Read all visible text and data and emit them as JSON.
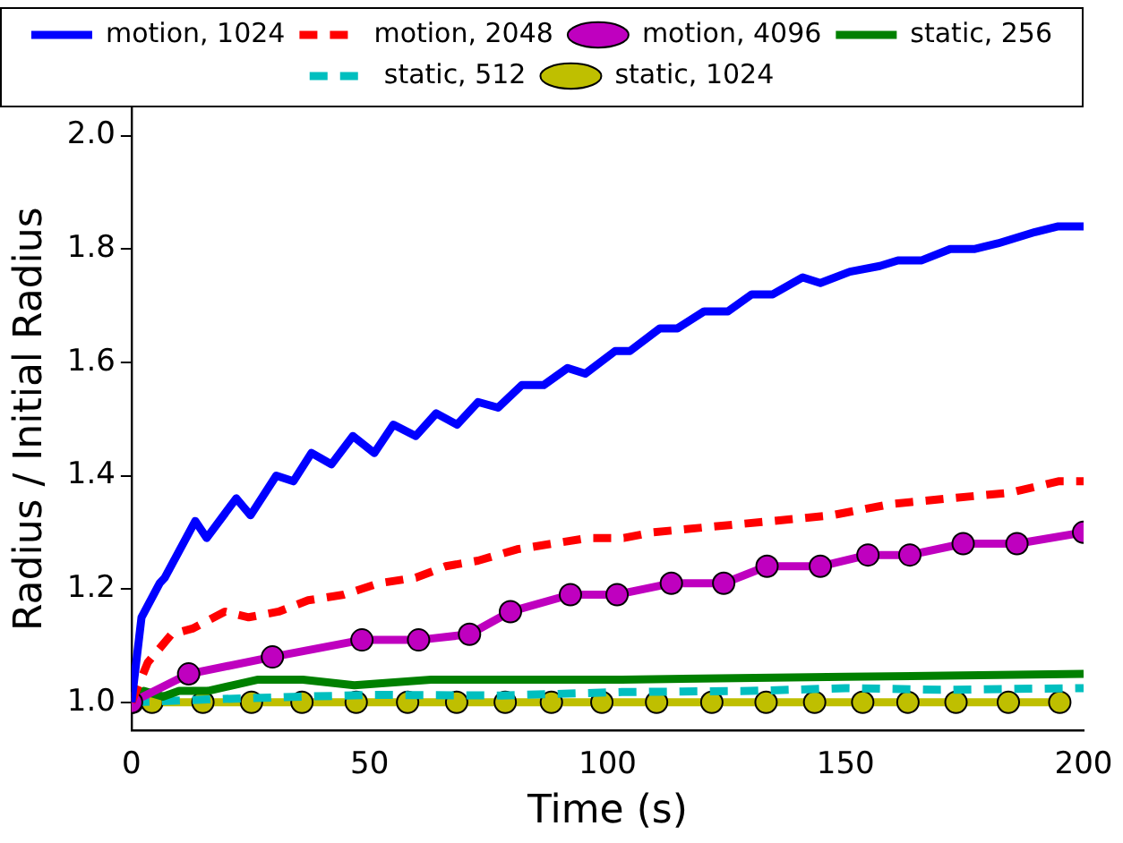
{
  "chart_data": {
    "type": "line",
    "xlabel": "Time (s)",
    "ylabel": "Radius / Initial Radius",
    "xlim": [
      0,
      200
    ],
    "ylim": [
      0.95,
      2.05
    ],
    "xticks": [
      0,
      50,
      100,
      150,
      200
    ],
    "yticks": [
      {
        "value": 1,
        "label": "1.0"
      },
      {
        "value": 1.2,
        "label": "1.2"
      },
      {
        "value": 1.4,
        "label": "1.4"
      },
      {
        "value": 1.6,
        "label": "1.6"
      },
      {
        "value": 1.8,
        "label": "1.8"
      },
      {
        "value": 2,
        "label": "2.0"
      }
    ],
    "grid": false,
    "legend": "top",
    "series": [
      {
        "name": "motion, 1024",
        "color": "#0000ff",
        "line_style": "solid",
        "marker": "none",
        "x": [
          0,
          2.1,
          5.9,
          7,
          13.4,
          15.8,
          22,
          25,
          30.4,
          34,
          37.8,
          42,
          46.5,
          51,
          55,
          59.7,
          64,
          68.4,
          72.8,
          77,
          82,
          86.6,
          91.6,
          95.3,
          101.6,
          104.7,
          111,
          114.7,
          120.3,
          125.3,
          130.3,
          134.7,
          141,
          144.7,
          150.9,
          157.2,
          161,
          166,
          172,
          177,
          182,
          189.8,
          194.7,
          200
        ],
        "values": [
          1.0,
          1.15,
          1.21,
          1.22,
          1.32,
          1.29,
          1.36,
          1.33,
          1.4,
          1.39,
          1.44,
          1.42,
          1.47,
          1.44,
          1.49,
          1.47,
          1.51,
          1.49,
          1.53,
          1.52,
          1.56,
          1.56,
          1.59,
          1.58,
          1.62,
          1.62,
          1.66,
          1.66,
          1.69,
          1.69,
          1.72,
          1.72,
          1.75,
          1.74,
          1.76,
          1.77,
          1.78,
          1.78,
          1.8,
          1.8,
          1.81,
          1.83,
          1.84,
          1.84
        ]
      },
      {
        "name": "motion, 2048",
        "color": "#ff0000",
        "line_style": "dashed",
        "marker": "none",
        "x": [
          0,
          3.4,
          8.4,
          12.8,
          19.6,
          24.6,
          30.9,
          37.1,
          44.6,
          52,
          59.7,
          66,
          72.8,
          81,
          88.4,
          96,
          103.4,
          109.6,
          122,
          134.7,
          147,
          159.7,
          172,
          184.6,
          194.7,
          200
        ],
        "values": [
          1.0,
          1.07,
          1.12,
          1.13,
          1.16,
          1.15,
          1.16,
          1.18,
          1.19,
          1.21,
          1.22,
          1.24,
          1.25,
          1.27,
          1.28,
          1.29,
          1.29,
          1.3,
          1.31,
          1.32,
          1.33,
          1.35,
          1.36,
          1.37,
          1.39,
          1.39
        ]
      },
      {
        "name": "motion, 4096",
        "color": "#bf00bf",
        "line_style": "solid",
        "marker": "circle",
        "x": [
          0,
          12,
          29.6,
          48.4,
          60.3,
          71,
          79.6,
          92.2,
          102,
          113.4,
          124.4,
          133.5,
          144.7,
          154.7,
          163.5,
          174.7,
          186,
          200
        ],
        "values": [
          1.0,
          1.05,
          1.08,
          1.11,
          1.11,
          1.12,
          1.16,
          1.19,
          1.19,
          1.21,
          1.21,
          1.24,
          1.24,
          1.26,
          1.26,
          1.28,
          1.28,
          1.3
        ]
      },
      {
        "name": "static, 256",
        "color": "#008000",
        "line_style": "solid",
        "marker": "none",
        "x": [
          0,
          2.6,
          6.6,
          10,
          16,
          26.6,
          36,
          46.8,
          62.9,
          103,
          150,
          200
        ],
        "values": [
          1.0,
          1.02,
          1.01,
          1.02,
          1.02,
          1.04,
          1.04,
          1.03,
          1.04,
          1.04,
          1.045,
          1.05
        ]
      },
      {
        "name": "static, 512",
        "color": "#00bfbf",
        "line_style": "dashed",
        "marker": "none",
        "x": [
          0,
          16,
          36,
          51,
          77.7,
          103,
          130,
          150,
          170,
          200
        ],
        "values": [
          1.0,
          1.005,
          1.01,
          1.013,
          1.012,
          1.018,
          1.02,
          1.025,
          1.022,
          1.025
        ]
      },
      {
        "name": "static, 1024",
        "color": "#bfbf00",
        "line_style": "solid",
        "marker": "circle",
        "x": [
          0.2,
          4.3,
          15,
          25.2,
          35.8,
          47.2,
          58,
          68.3,
          78.5,
          88.2,
          98.8,
          110.3,
          121.9,
          133.3,
          143.5,
          153.6,
          163.1,
          173.2,
          184.2,
          195
        ],
        "values": [
          1.0,
          1.0,
          1.0,
          1.0,
          1.0,
          1.0,
          1.0,
          1.0,
          1.0,
          1.0,
          1.0,
          1.0,
          1.0,
          1.0,
          1.0,
          1.0,
          1.0,
          1.0,
          1.0,
          1.0
        ]
      }
    ]
  }
}
